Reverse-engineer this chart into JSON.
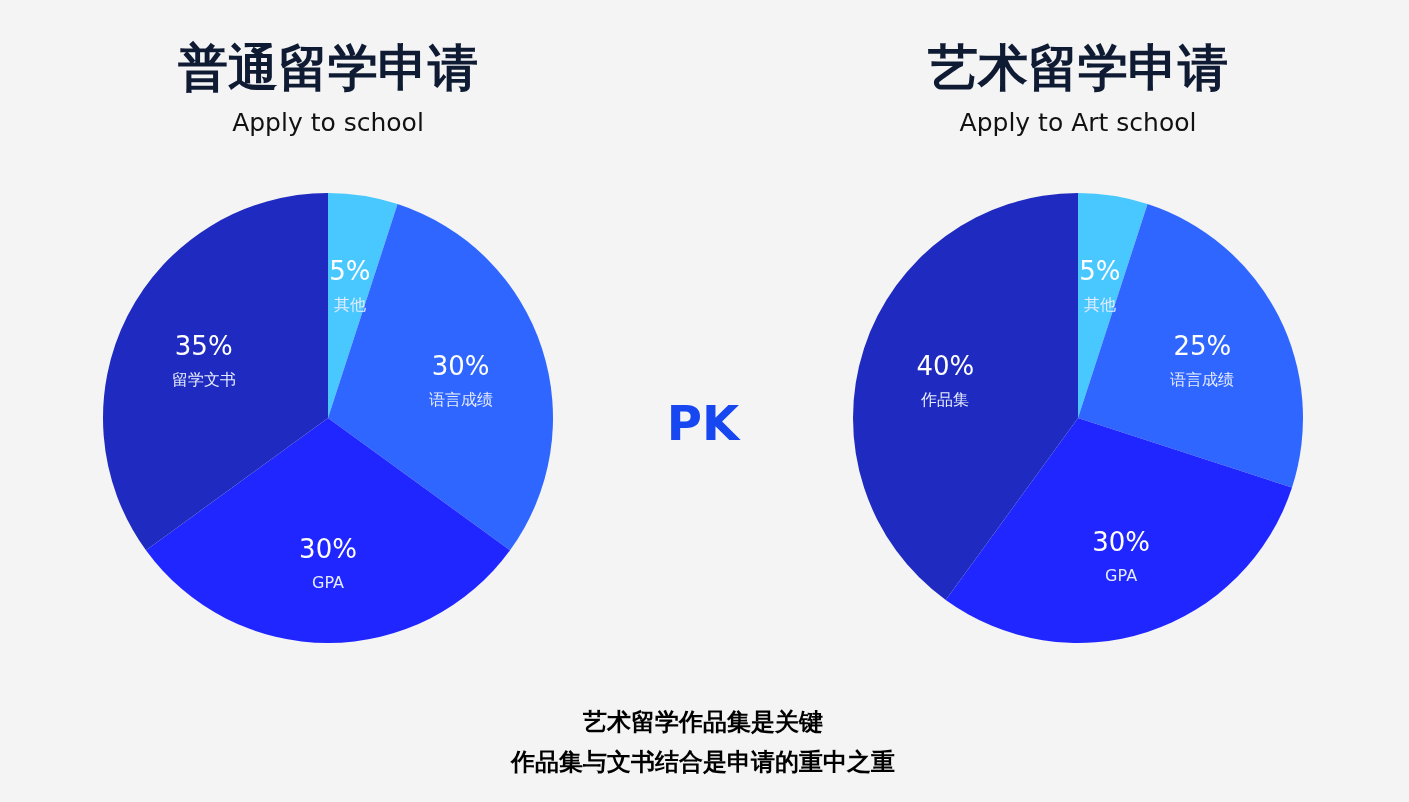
{
  "chart_data": [
    {
      "type": "pie",
      "title": "普通留学申请",
      "subtitle": "Apply to school",
      "categories": [
        "其他",
        "语言成绩",
        "GPA",
        "留学文书"
      ],
      "values": [
        5,
        30,
        30,
        35
      ],
      "value_labels": [
        "5%",
        "30%",
        "30%",
        "35%"
      ],
      "colors": [
        "#48c8ff",
        "#2f66ff",
        "#2026ff",
        "#1f2bc0"
      ]
    },
    {
      "type": "pie",
      "title": "艺术留学申请",
      "subtitle": "Apply to Art school",
      "categories": [
        "其他",
        "语言成绩",
        "GPA",
        "作品集"
      ],
      "values": [
        5,
        25,
        30,
        40
      ],
      "value_labels": [
        "5%",
        "25%",
        "30%",
        "40%"
      ],
      "colors": [
        "#48c8ff",
        "#2f66ff",
        "#2026ff",
        "#1f2bc0"
      ]
    },
    {
      "type": "other",
      "annotations": [
        "PK",
        "艺术留学作品集是关键",
        "作品集与文书结合是申请的重中之重"
      ]
    }
  ]
}
